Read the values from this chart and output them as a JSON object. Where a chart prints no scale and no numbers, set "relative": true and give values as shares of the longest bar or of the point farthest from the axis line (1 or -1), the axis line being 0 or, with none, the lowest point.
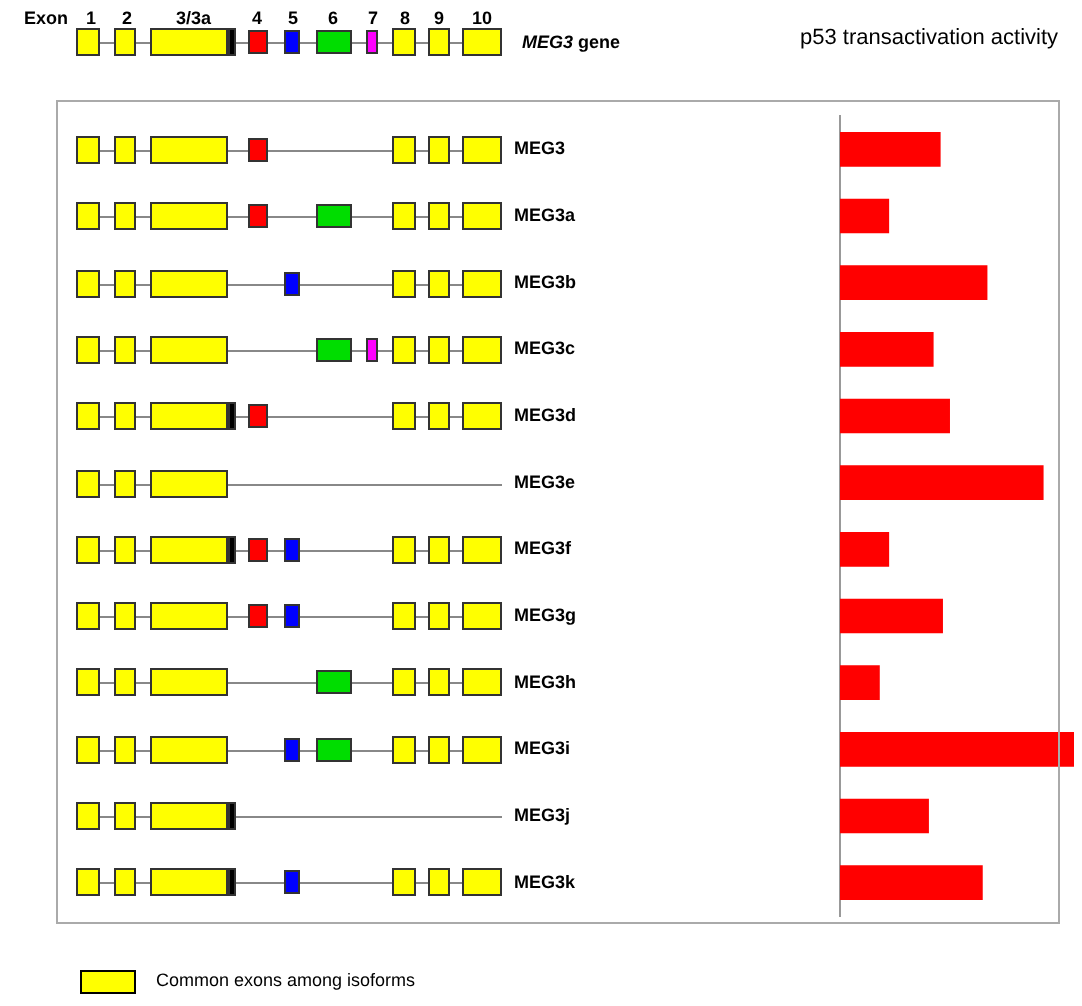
{
  "chart_data": {
    "type": "bar",
    "orientation": "horizontal",
    "relative": true,
    "title": "p53 transactivation activity",
    "categories": [
      "MEG3",
      "MEG3a",
      "MEG3b",
      "MEG3c",
      "MEG3d",
      "MEG3e",
      "MEG3f",
      "MEG3g",
      "MEG3h",
      "MEG3i",
      "MEG3j",
      "MEG3k"
    ],
    "values": [
      0.43,
      0.21,
      0.63,
      0.4,
      0.47,
      0.87,
      0.21,
      0.44,
      0.17,
      1,
      0.38,
      0.61
    ],
    "color": "#ff0000",
    "annotations": [
      "Exon",
      "1",
      "2",
      "3/3a",
      "4",
      "5",
      "6",
      "7",
      "8",
      "9",
      "10",
      "MEG3 gene",
      "Common exons among isoforms"
    ]
  }
}
